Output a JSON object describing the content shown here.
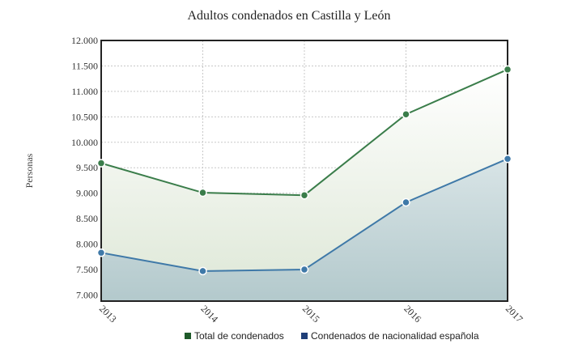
{
  "chart_data": {
    "type": "area",
    "title": "Adultos condenados en Castilla y León",
    "xlabel": "",
    "ylabel": "Personas",
    "categories": [
      "2013",
      "2014",
      "2015",
      "2016",
      "2017"
    ],
    "ylim": [
      6880,
      12000
    ],
    "yticks": [
      "7.000",
      "7.500",
      "8.000",
      "8.500",
      "9.000",
      "9.500",
      "10.000",
      "10.500",
      "11.000",
      "11.500",
      "12.000"
    ],
    "ytick_values": [
      7000,
      7500,
      8000,
      8500,
      9000,
      9500,
      10000,
      10500,
      11000,
      11500,
      12000
    ],
    "grid": true,
    "legend_position": "bottom",
    "series": [
      {
        "name": "Total de condenados",
        "values": [
          9590,
          9010,
          8960,
          10550,
          11430
        ],
        "color": "#3a7d4a",
        "fill": "#e3ebdd"
      },
      {
        "name": "Condenados de nacionalidad española",
        "values": [
          7830,
          7470,
          7500,
          8820,
          9675
        ],
        "color": "#3f79a8",
        "fill": "#b9cfd3"
      }
    ]
  }
}
